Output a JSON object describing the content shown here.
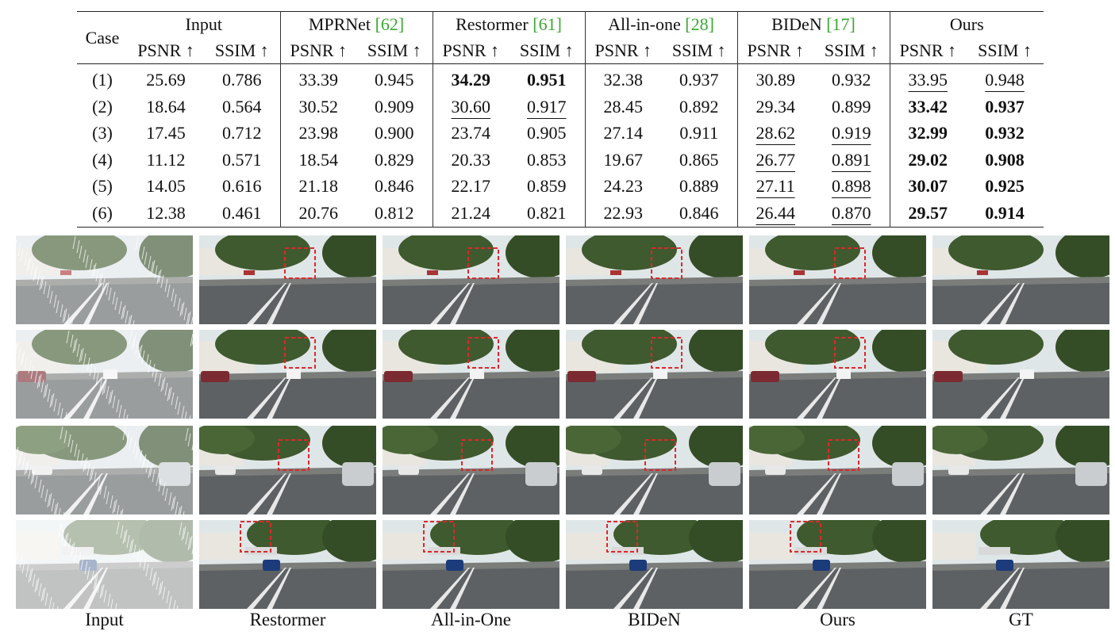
{
  "table": {
    "case_header": "Case",
    "groups": [
      {
        "name": "Input",
        "cite": ""
      },
      {
        "name": "MPRNet ",
        "cite": "[62]"
      },
      {
        "name": "Restormer ",
        "cite": "[61]"
      },
      {
        "name": "All-in-one ",
        "cite": "[28]"
      },
      {
        "name": "BIDeN ",
        "cite": "[17]"
      },
      {
        "name": "Ours",
        "cite": ""
      }
    ],
    "metric_psnr": "PSNR ↑",
    "metric_ssim": "SSIM ↑",
    "rows": [
      {
        "case": "(1)",
        "cells": [
          "25.69",
          "0.786",
          "33.39",
          "0.945",
          "34.29",
          "0.951",
          "32.38",
          "0.937",
          "30.89",
          "0.932",
          "33.95",
          "0.948"
        ],
        "style": [
          "",
          "",
          "",
          "",
          "best",
          "best",
          "",
          "",
          "",
          "",
          "second",
          "second"
        ]
      },
      {
        "case": "(2)",
        "cells": [
          "18.64",
          "0.564",
          "30.52",
          "0.909",
          "30.60",
          "0.917",
          "28.45",
          "0.892",
          "29.34",
          "0.899",
          "33.42",
          "0.937"
        ],
        "style": [
          "",
          "",
          "",
          "",
          "second",
          "second",
          "",
          "",
          "",
          "",
          "best",
          "best"
        ]
      },
      {
        "case": "(3)",
        "cells": [
          "17.45",
          "0.712",
          "23.98",
          "0.900",
          "23.74",
          "0.905",
          "27.14",
          "0.911",
          "28.62",
          "0.919",
          "32.99",
          "0.932"
        ],
        "style": [
          "",
          "",
          "",
          "",
          "",
          "",
          "",
          "",
          "second",
          "second",
          "best",
          "best"
        ]
      },
      {
        "case": "(4)",
        "cells": [
          "11.12",
          "0.571",
          "18.54",
          "0.829",
          "20.33",
          "0.853",
          "19.67",
          "0.865",
          "26.77",
          "0.891",
          "29.02",
          "0.908"
        ],
        "style": [
          "",
          "",
          "",
          "",
          "",
          "",
          "",
          "",
          "second",
          "second",
          "best",
          "best"
        ]
      },
      {
        "case": "(5)",
        "cells": [
          "14.05",
          "0.616",
          "21.18",
          "0.846",
          "22.17",
          "0.859",
          "24.23",
          "0.889",
          "27.11",
          "0.898",
          "30.07",
          "0.925"
        ],
        "style": [
          "",
          "",
          "",
          "",
          "",
          "",
          "",
          "",
          "second",
          "second",
          "best",
          "best"
        ]
      },
      {
        "case": "(6)",
        "cells": [
          "12.38",
          "0.461",
          "20.76",
          "0.812",
          "21.24",
          "0.821",
          "22.93",
          "0.846",
          "26.44",
          "0.870",
          "29.57",
          "0.914"
        ],
        "style": [
          "",
          "",
          "",
          "",
          "",
          "",
          "",
          "",
          "second",
          "second",
          "best",
          "best"
        ]
      }
    ]
  },
  "figure": {
    "column_labels": [
      "Input",
      "Restormer",
      "All-in-One",
      "BIDeN",
      "Ours",
      "GT"
    ],
    "colors": {
      "sky": "#dfe6e8",
      "road": "#5d6163",
      "trees": "#3f5a2e",
      "building": "#e9e6df",
      "rain": "#ffffff",
      "highlight_box": "#e0262b"
    }
  }
}
